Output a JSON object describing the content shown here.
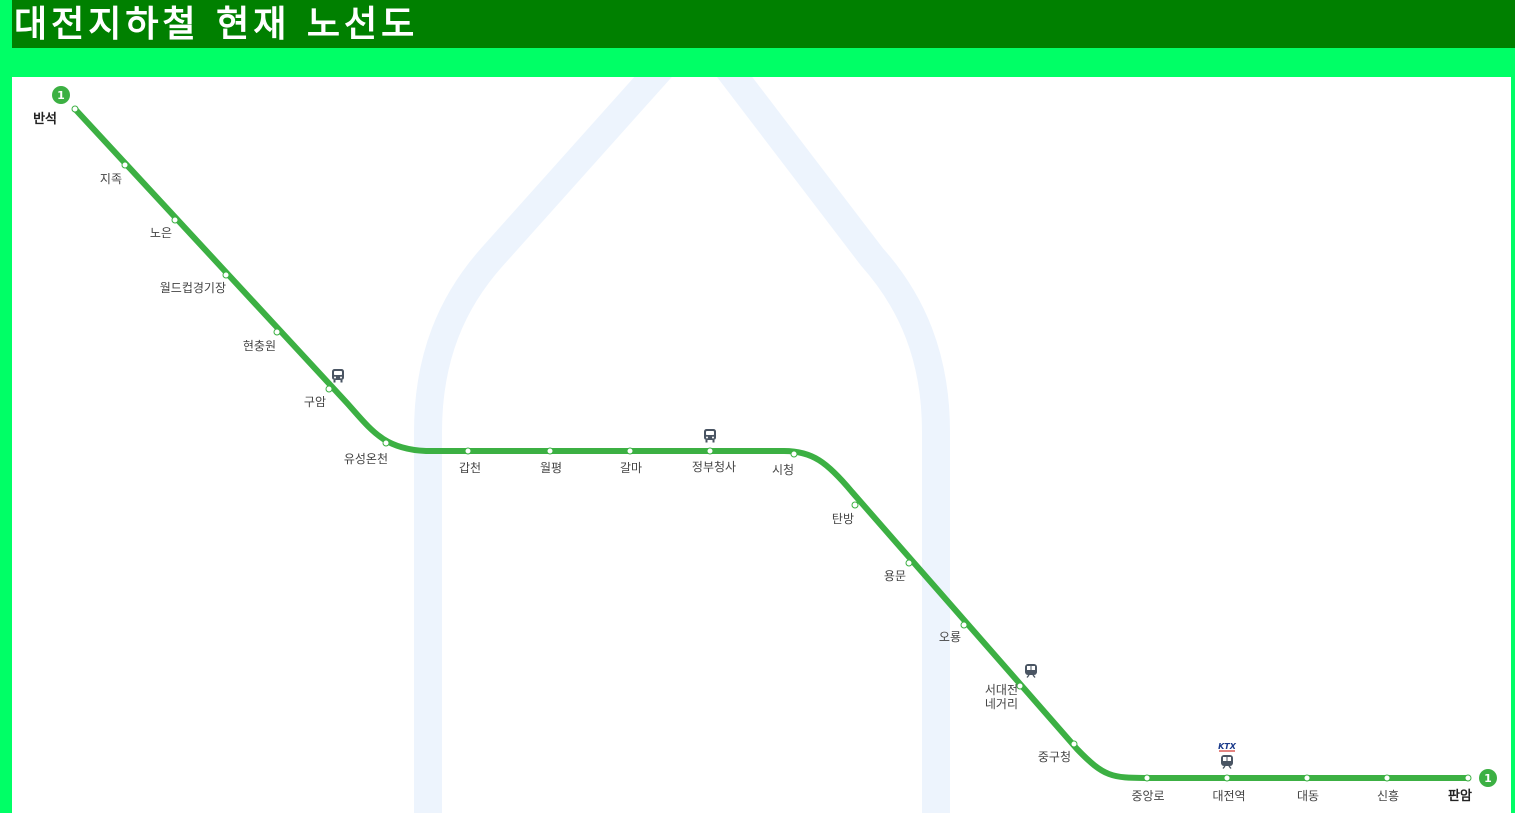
{
  "header": {
    "title": "대전지하철 현재 노선도"
  },
  "colors": {
    "page_background": "#00ff66",
    "title_bar": "#008000",
    "line_1": "#3cb043",
    "planned_line_shadow": "#edf4fd",
    "station_dot": "#ffffff",
    "icon": "#4a5563"
  },
  "line": {
    "number": "1",
    "termini": {
      "start": "반석",
      "end": "판암"
    },
    "stations": [
      {
        "name": "반석",
        "terminal": true
      },
      {
        "name": "지족"
      },
      {
        "name": "노은"
      },
      {
        "name": "월드컵경기장"
      },
      {
        "name": "현충원"
      },
      {
        "name": "구암",
        "icons": [
          "bus-icon"
        ]
      },
      {
        "name": "유성온천"
      },
      {
        "name": "갑천"
      },
      {
        "name": "월평"
      },
      {
        "name": "갈마"
      },
      {
        "name": "정부청사",
        "icons": [
          "bus-icon"
        ]
      },
      {
        "name": "시청"
      },
      {
        "name": "탄방"
      },
      {
        "name": "용문"
      },
      {
        "name": "오룡"
      },
      {
        "name": "서대전네거리",
        "label_lines": [
          "서대전",
          "네거리"
        ],
        "icons": [
          "train-icon"
        ]
      },
      {
        "name": "중구청"
      },
      {
        "name": "중앙로"
      },
      {
        "name": "대전역",
        "icons": [
          "ktx-icon",
          "train-icon"
        ]
      },
      {
        "name": "대동"
      },
      {
        "name": "신흥"
      },
      {
        "name": "판암",
        "terminal": true
      }
    ]
  },
  "icons": {
    "ktx_text": "KTX"
  }
}
